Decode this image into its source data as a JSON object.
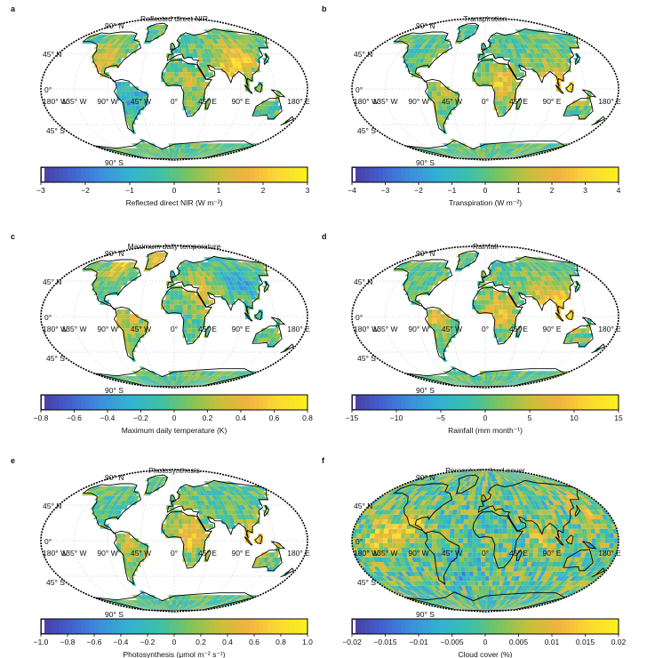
{
  "chart_data": [
    {
      "type": "heatmap",
      "panel_letter": "a",
      "title": "Reflected direct NIR",
      "colorbar": {
        "label": "Reflected direct NIR (W m⁻²)",
        "range": [
          -3,
          3
        ],
        "ticks": [
          "−3",
          "−2",
          "−1",
          "0",
          "1",
          "2",
          "3"
        ]
      },
      "lat_labels": [
        "90° N",
        "45° N",
        "0°",
        "45° S",
        "90° S"
      ],
      "lon_labels": [
        "180° W",
        "135° W",
        "90° W",
        "45° W",
        "0°",
        "45° E",
        "90° E",
        "180° E"
      ],
      "coverage": "land",
      "hotspots": [
        {
          "lon": -105,
          "lat": 40,
          "v": 1.6
        },
        {
          "lon": 100,
          "lat": 40,
          "v": 1.8
        },
        {
          "lon": 20,
          "lat": 10,
          "v": 0.8
        },
        {
          "lon": 75,
          "lat": 25,
          "v": 1.5
        },
        {
          "lon": -60,
          "lat": -10,
          "v": -1.2
        }
      ]
    },
    {
      "type": "heatmap",
      "panel_letter": "b",
      "title": "Transpiration",
      "colorbar": {
        "label": "Transpiration (W m⁻²)",
        "range": [
          -4,
          4
        ],
        "ticks": [
          "−4",
          "−3",
          "−2",
          "−1",
          "0",
          "1",
          "2",
          "3",
          "4"
        ]
      },
      "lat_labels": [
        "90° N",
        "45° N",
        "0°",
        "45° S",
        "90° S"
      ],
      "lon_labels": [
        "180° W",
        "135° W",
        "90° W",
        "45° W",
        "0°",
        "45° E",
        "90° E",
        "180° E"
      ],
      "coverage": "land",
      "hotspots": [
        {
          "lon": 20,
          "lat": 5,
          "v": 2.5
        },
        {
          "lon": 110,
          "lat": 0,
          "v": 3.2
        },
        {
          "lon": -60,
          "lat": -5,
          "v": 1.2
        },
        {
          "lon": 80,
          "lat": 20,
          "v": 1.0
        }
      ]
    },
    {
      "type": "heatmap",
      "panel_letter": "c",
      "title": "Maximum daily temperature",
      "colorbar": {
        "label": "Maximum daily temperature (K)",
        "range": [
          -0.8,
          0.8
        ],
        "ticks": [
          "−0.8",
          "−0.6",
          "−0.4",
          "−0.2",
          "0",
          "0.2",
          "0.4",
          "0.6",
          "0.8"
        ]
      },
      "lat_labels": [
        "90° N",
        "45° N",
        "0°",
        "45° S",
        "90° S"
      ],
      "lon_labels": [
        "180° W",
        "135° W",
        "90° W",
        "45° W",
        "0°",
        "45° E",
        "90° E",
        "180° E"
      ],
      "coverage": "land",
      "hotspots": [
        {
          "lon": -100,
          "lat": 70,
          "v": 0.55
        },
        {
          "lon": -40,
          "lat": 72,
          "v": 0.5
        },
        {
          "lon": 40,
          "lat": 30,
          "v": 0.4
        },
        {
          "lon": 100,
          "lat": 45,
          "v": -0.3
        },
        {
          "lon": -60,
          "lat": -10,
          "v": 0.3
        }
      ]
    },
    {
      "type": "heatmap",
      "panel_letter": "d",
      "title": "Rainfall",
      "colorbar": {
        "label": "Rainfall (mm month⁻¹)",
        "range": [
          -15,
          15
        ],
        "ticks": [
          "−15",
          "−10",
          "−5",
          "0",
          "5",
          "10",
          "15"
        ]
      },
      "lat_labels": [
        "90° N",
        "45° N",
        "0°",
        "45° S",
        "90° S"
      ],
      "lon_labels": [
        "180° W",
        "135° W",
        "90° W",
        "45° W",
        "0°",
        "45° E",
        "90° E",
        "180° E"
      ],
      "coverage": "land",
      "hotspots": [
        {
          "lon": 20,
          "lat": 8,
          "v": 9
        },
        {
          "lon": 110,
          "lat": 0,
          "v": 11
        },
        {
          "lon": -65,
          "lat": 0,
          "v": 8
        },
        {
          "lon": 80,
          "lat": 22,
          "v": 6
        },
        {
          "lon": 105,
          "lat": 30,
          "v": 5
        }
      ]
    },
    {
      "type": "heatmap",
      "panel_letter": "e",
      "title": "Photosynthesis",
      "colorbar": {
        "label": "Photosynthesis (μmol m⁻² s⁻¹)",
        "range": [
          -1.0,
          1.0
        ],
        "ticks": [
          "−1.0",
          "−0.8",
          "−0.6",
          "−0.4",
          "−0.2",
          "0",
          "0.2",
          "0.4",
          "0.6",
          "0.8",
          "1.0"
        ]
      },
      "lat_labels": [
        "90° N",
        "45° N",
        "0°",
        "45° S",
        "90° S"
      ],
      "lon_labels": [
        "180° W",
        "135° W",
        "90° W",
        "45° W",
        "0°",
        "45° E",
        "90° E",
        "180° E"
      ],
      "coverage": "land",
      "hotspots": [
        {
          "lon": 20,
          "lat": 5,
          "v": 0.7
        },
        {
          "lon": 110,
          "lat": 0,
          "v": 0.75
        },
        {
          "lon": -60,
          "lat": -8,
          "v": 0.4
        }
      ]
    },
    {
      "type": "heatmap",
      "panel_letter": "f",
      "title": "Percentage cloud cover",
      "colorbar": {
        "label": "Cloud cover (%)",
        "range": [
          -0.02,
          0.02
        ],
        "ticks": [
          "−0.02",
          "−0.015",
          "−0.01",
          "−0.005",
          "0",
          "0.005",
          "0.01",
          "0.015",
          "0.02"
        ]
      },
      "lat_labels": [
        "90° N",
        "45° N",
        "0°",
        "45° S",
        "90° S"
      ],
      "lon_labels": [
        "180° W",
        "135° W",
        "90° W",
        "45° W",
        "0°",
        "45° E",
        "90° E",
        "180° E"
      ],
      "coverage": "global",
      "hotspots": [
        {
          "lon": -140,
          "lat": 5,
          "v": 0.012
        },
        {
          "lon": -100,
          "lat": 20,
          "v": 0.01
        },
        {
          "lon": 80,
          "lat": 10,
          "v": 0.008
        },
        {
          "lon": 150,
          "lat": 35,
          "v": 0.009
        },
        {
          "lon": -30,
          "lat": -40,
          "v": -0.008
        }
      ]
    }
  ],
  "colormap": [
    "#4b3aa0",
    "#4260cf",
    "#3d8edc",
    "#32b3d0",
    "#3cc0a8",
    "#7cc45e",
    "#c7c03a",
    "#f2b33e",
    "#fbd833",
    "#f9f21c"
  ]
}
